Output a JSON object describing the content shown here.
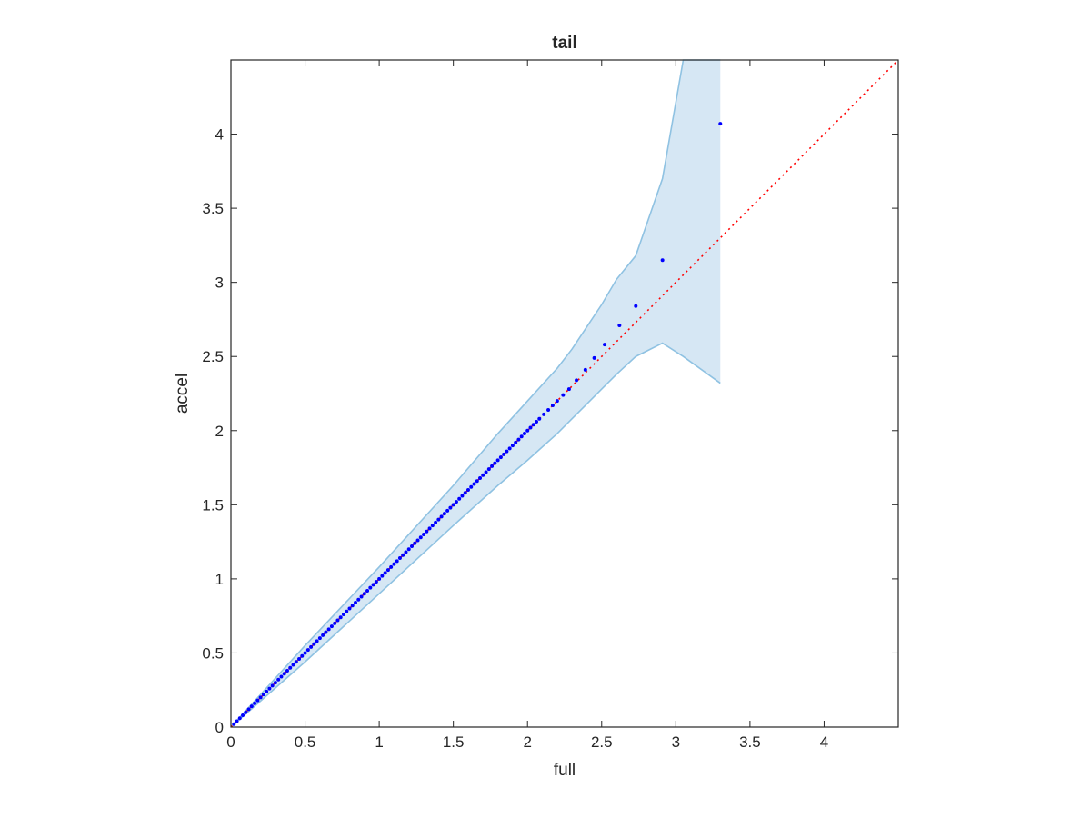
{
  "chart_data": {
    "type": "scatter",
    "title": "tail",
    "xlabel": "full",
    "ylabel": "accel",
    "xlim": [
      0,
      4.5
    ],
    "ylim": [
      0,
      4.5
    ],
    "x_ticks": [
      "0",
      "0.5",
      "1",
      "1.5",
      "2",
      "2.5",
      "3",
      "3.5",
      "4"
    ],
    "y_ticks": [
      "0",
      "0.5",
      "1",
      "1.5",
      "2",
      "2.5",
      "3",
      "3.5",
      "4"
    ],
    "grid": false,
    "colors": {
      "points": "#0000ff",
      "reference_line": "#ff0000",
      "band_fill": "#d6e7f4",
      "band_edge": "#8fc2e2",
      "axes": "#262626"
    },
    "series": [
      {
        "type": "scatter",
        "x": [
          0.02,
          0.04,
          0.06,
          0.08,
          0.1,
          0.12,
          0.14,
          0.16,
          0.18,
          0.2,
          0.22,
          0.24,
          0.26,
          0.28,
          0.3,
          0.32,
          0.34,
          0.36,
          0.38,
          0.4,
          0.42,
          0.44,
          0.46,
          0.48,
          0.5,
          0.52,
          0.54,
          0.56,
          0.58,
          0.6,
          0.62,
          0.64,
          0.66,
          0.68,
          0.7,
          0.72,
          0.74,
          0.76,
          0.78,
          0.8,
          0.82,
          0.84,
          0.86,
          0.88,
          0.9,
          0.92,
          0.94,
          0.96,
          0.98,
          1.0,
          1.02,
          1.04,
          1.06,
          1.08,
          1.1,
          1.12,
          1.14,
          1.16,
          1.18,
          1.2,
          1.22,
          1.24,
          1.26,
          1.28,
          1.3,
          1.32,
          1.34,
          1.36,
          1.38,
          1.4,
          1.42,
          1.44,
          1.46,
          1.48,
          1.5,
          1.52,
          1.54,
          1.56,
          1.58,
          1.6,
          1.62,
          1.64,
          1.66,
          1.68,
          1.7,
          1.72,
          1.74,
          1.76,
          1.78,
          1.8,
          1.82,
          1.84,
          1.86,
          1.88,
          1.9,
          1.92,
          1.94,
          1.96,
          1.98,
          2.0,
          2.02,
          2.04,
          2.06,
          2.08,
          2.11,
          2.14,
          2.17,
          2.2,
          2.24,
          2.28,
          2.33,
          2.39,
          2.45,
          2.52,
          2.62,
          2.73,
          2.91,
          3.3
        ],
        "y": [
          0.02,
          0.04,
          0.06,
          0.08,
          0.1,
          0.12,
          0.14,
          0.16,
          0.18,
          0.2,
          0.22,
          0.24,
          0.26,
          0.28,
          0.3,
          0.32,
          0.34,
          0.36,
          0.38,
          0.4,
          0.42,
          0.44,
          0.46,
          0.48,
          0.5,
          0.52,
          0.54,
          0.56,
          0.58,
          0.6,
          0.62,
          0.64,
          0.66,
          0.68,
          0.7,
          0.72,
          0.74,
          0.76,
          0.78,
          0.8,
          0.82,
          0.84,
          0.86,
          0.88,
          0.9,
          0.92,
          0.94,
          0.96,
          0.98,
          1.0,
          1.02,
          1.04,
          1.06,
          1.08,
          1.1,
          1.12,
          1.14,
          1.16,
          1.18,
          1.2,
          1.22,
          1.24,
          1.26,
          1.28,
          1.3,
          1.32,
          1.34,
          1.36,
          1.38,
          1.4,
          1.42,
          1.44,
          1.46,
          1.48,
          1.5,
          1.52,
          1.54,
          1.56,
          1.58,
          1.6,
          1.62,
          1.64,
          1.66,
          1.68,
          1.7,
          1.72,
          1.74,
          1.76,
          1.78,
          1.8,
          1.82,
          1.84,
          1.86,
          1.88,
          1.9,
          1.92,
          1.94,
          1.96,
          1.98,
          2.0,
          2.02,
          2.04,
          2.06,
          2.08,
          2.11,
          2.14,
          2.17,
          2.2,
          2.24,
          2.28,
          2.34,
          2.41,
          2.49,
          2.58,
          2.71,
          2.84,
          3.15,
          4.07
        ]
      },
      {
        "type": "line",
        "style": "dotted",
        "x": [
          0,
          4.5
        ],
        "y": [
          0,
          4.5
        ]
      },
      {
        "type": "band",
        "x": [
          0,
          0.5,
          1.0,
          1.5,
          1.8,
          2.0,
          2.2,
          2.3,
          2.4,
          2.5,
          2.6,
          2.73,
          2.91,
          3.05,
          3.3
        ],
        "upper": [
          0,
          0.55,
          1.08,
          1.63,
          1.98,
          2.2,
          2.42,
          2.55,
          2.7,
          2.85,
          3.02,
          3.18,
          3.7,
          4.5,
          4.5
        ],
        "lower": [
          0,
          0.44,
          0.9,
          1.36,
          1.63,
          1.8,
          1.98,
          2.08,
          2.18,
          2.28,
          2.38,
          2.5,
          2.59,
          2.5,
          2.32
        ]
      }
    ]
  }
}
